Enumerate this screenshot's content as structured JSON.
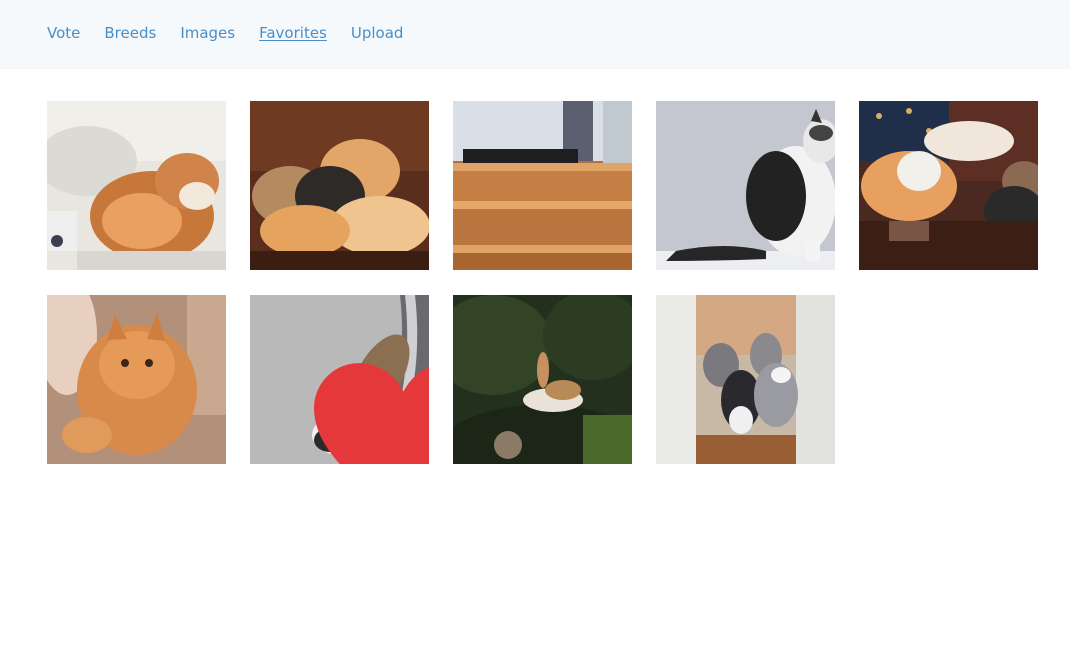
{
  "nav": {
    "items": [
      {
        "label": "Vote",
        "active": false
      },
      {
        "label": "Breeds",
        "active": false
      },
      {
        "label": "Images",
        "active": false
      },
      {
        "label": "Favorites",
        "active": true
      },
      {
        "label": "Upload",
        "active": false
      }
    ]
  },
  "colors": {
    "nav_link": "#4a8ec6",
    "topbar_bg": "#f5f9fc",
    "heart": "#e5383b"
  },
  "gallery": {
    "images": [
      {
        "subject": "orange-white-cat-on-bed"
      },
      {
        "subject": "kittens-curled-sleeping"
      },
      {
        "subject": "cat-on-stairs"
      },
      {
        "subject": "black-white-cat-sitting"
      },
      {
        "subject": "orange-cat-on-chair"
      },
      {
        "subject": "orange-fluffy-cat"
      },
      {
        "subject": "calico-cat-near-car",
        "favorite_heart": true
      },
      {
        "subject": "calico-cat-jumping-bushes"
      },
      {
        "subject": "group-of-cats-at-door"
      }
    ]
  }
}
